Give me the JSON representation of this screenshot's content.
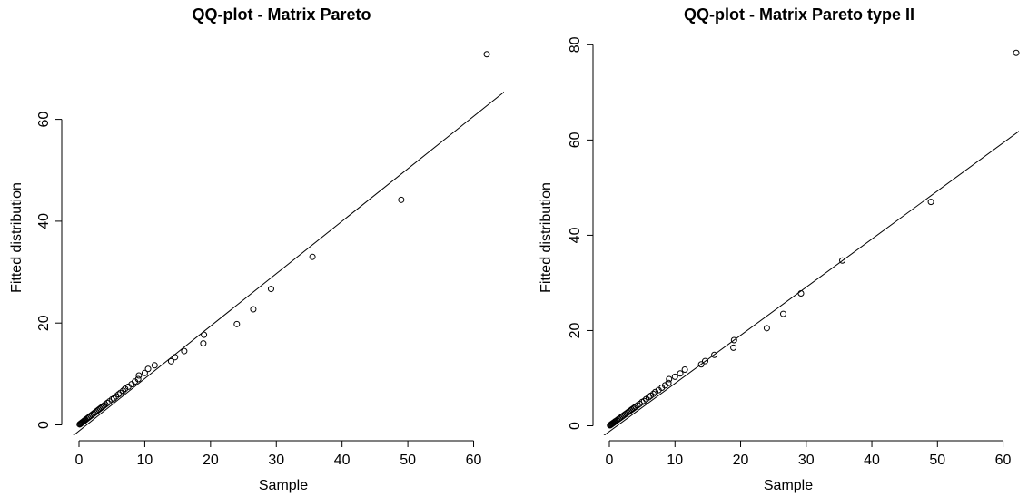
{
  "chart_data": [
    {
      "type": "scatter",
      "title": "QQ-plot - Matrix Pareto",
      "xlabel": "Sample",
      "ylabel": "Fitted distribution",
      "xlim": [
        0,
        64
      ],
      "ylim": [
        0,
        76
      ],
      "xticks": [
        0,
        10,
        20,
        30,
        40,
        50,
        60
      ],
      "yticks": [
        0,
        20,
        40,
        60
      ],
      "reference_line": {
        "intercept": -1.2,
        "slope": 1.03
      },
      "points": [
        [
          0.1,
          0.1
        ],
        [
          0.2,
          0.2
        ],
        [
          0.3,
          0.3
        ],
        [
          0.4,
          0.4
        ],
        [
          0.5,
          0.5
        ],
        [
          0.6,
          0.6
        ],
        [
          0.7,
          0.7
        ],
        [
          0.8,
          0.8
        ],
        [
          0.9,
          0.9
        ],
        [
          1.0,
          1.0
        ],
        [
          1.2,
          1.2
        ],
        [
          1.4,
          1.4
        ],
        [
          1.6,
          1.6
        ],
        [
          1.8,
          1.8
        ],
        [
          2.0,
          2.0
        ],
        [
          2.2,
          2.2
        ],
        [
          2.4,
          2.4
        ],
        [
          2.6,
          2.6
        ],
        [
          2.8,
          2.8
        ],
        [
          3.0,
          3.0
        ],
        [
          3.2,
          3.2
        ],
        [
          3.4,
          3.4
        ],
        [
          3.6,
          3.6
        ],
        [
          3.8,
          3.8
        ],
        [
          4.0,
          4.0
        ],
        [
          4.3,
          4.3
        ],
        [
          4.6,
          4.6
        ],
        [
          5.0,
          5.0
        ],
        [
          5.3,
          5.2
        ],
        [
          5.6,
          5.6
        ],
        [
          6.0,
          6.0
        ],
        [
          6.3,
          6.3
        ],
        [
          6.7,
          6.7
        ],
        [
          7.0,
          7.1
        ],
        [
          7.5,
          7.5
        ],
        [
          8.0,
          8.0
        ],
        [
          8.5,
          8.5
        ],
        [
          9.0,
          9.0
        ],
        [
          9.1,
          9.7
        ],
        [
          10.0,
          10.2
        ],
        [
          10.5,
          11.0
        ],
        [
          11.5,
          11.7
        ],
        [
          14.0,
          12.5
        ],
        [
          14.6,
          13.3
        ],
        [
          16.0,
          14.5
        ],
        [
          18.9,
          16.0
        ],
        [
          19.0,
          17.7
        ],
        [
          24.0,
          19.8
        ],
        [
          26.5,
          22.7
        ],
        [
          29.2,
          26.7
        ],
        [
          35.5,
          33.0
        ],
        [
          49.0,
          44.2
        ],
        [
          62.0,
          72.8
        ]
      ]
    },
    {
      "type": "scatter",
      "title": "QQ-plot - Matrix Pareto type II",
      "xlabel": "Sample",
      "ylabel": "Fitted distribution",
      "xlim": [
        0,
        64
      ],
      "ylim": [
        0,
        80
      ],
      "xticks": [
        0,
        10,
        20,
        30,
        40,
        50,
        60
      ],
      "yticks": [
        0,
        20,
        40,
        60,
        80
      ],
      "reference_line": {
        "intercept": -1.2,
        "slope": 1.01
      },
      "points": [
        [
          0.1,
          0.1
        ],
        [
          0.2,
          0.2
        ],
        [
          0.3,
          0.3
        ],
        [
          0.4,
          0.4
        ],
        [
          0.5,
          0.5
        ],
        [
          0.6,
          0.6
        ],
        [
          0.7,
          0.7
        ],
        [
          0.8,
          0.8
        ],
        [
          0.9,
          0.9
        ],
        [
          1.0,
          1.0
        ],
        [
          1.2,
          1.2
        ],
        [
          1.4,
          1.4
        ],
        [
          1.6,
          1.6
        ],
        [
          1.8,
          1.8
        ],
        [
          2.0,
          2.0
        ],
        [
          2.2,
          2.2
        ],
        [
          2.4,
          2.4
        ],
        [
          2.6,
          2.6
        ],
        [
          2.8,
          2.8
        ],
        [
          3.0,
          3.0
        ],
        [
          3.2,
          3.2
        ],
        [
          3.4,
          3.4
        ],
        [
          3.6,
          3.6
        ],
        [
          3.8,
          3.8
        ],
        [
          4.0,
          4.0
        ],
        [
          4.3,
          4.3
        ],
        [
          4.6,
          4.6
        ],
        [
          5.0,
          5.0
        ],
        [
          5.3,
          5.2
        ],
        [
          5.6,
          5.6
        ],
        [
          6.0,
          6.0
        ],
        [
          6.3,
          6.3
        ],
        [
          6.7,
          6.7
        ],
        [
          7.0,
          7.1
        ],
        [
          7.5,
          7.5
        ],
        [
          8.0,
          8.0
        ],
        [
          8.5,
          8.5
        ],
        [
          9.0,
          9.0
        ],
        [
          9.1,
          9.8
        ],
        [
          10.0,
          10.3
        ],
        [
          10.8,
          11.0
        ],
        [
          11.5,
          11.8
        ],
        [
          14.0,
          12.9
        ],
        [
          14.6,
          13.6
        ],
        [
          16.0,
          14.9
        ],
        [
          18.9,
          16.4
        ],
        [
          19.0,
          18.0
        ],
        [
          24.0,
          20.5
        ],
        [
          26.5,
          23.5
        ],
        [
          29.2,
          27.8
        ],
        [
          35.5,
          34.7
        ],
        [
          49.0,
          47.0
        ],
        [
          62.0,
          78.3
        ]
      ]
    }
  ]
}
